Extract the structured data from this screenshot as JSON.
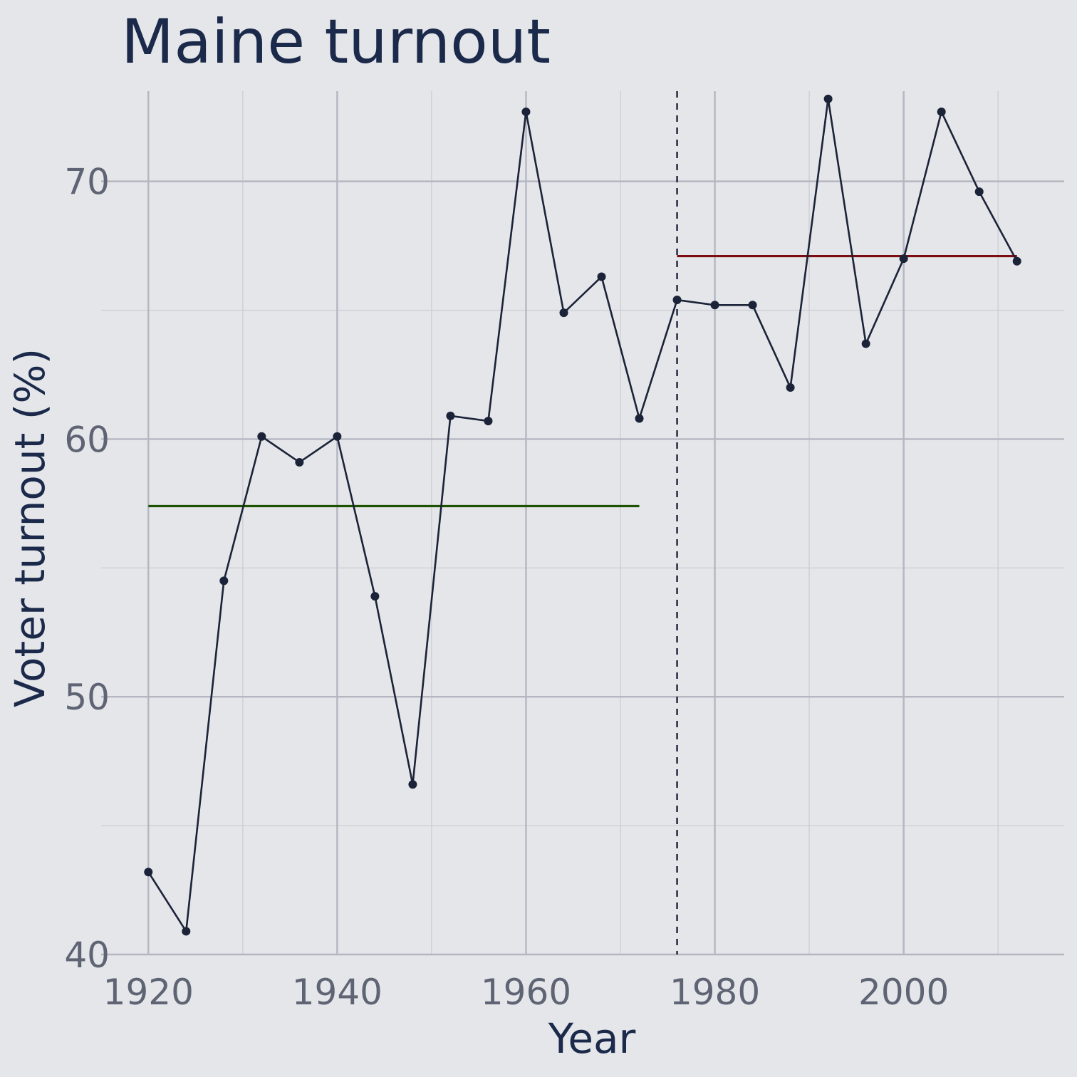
{
  "chart_data": {
    "type": "line",
    "title": "Maine turnout",
    "xlabel": "Year",
    "ylabel": "Voter turnout (%)",
    "xlim": [
      1915,
      2017
    ],
    "ylim": [
      40,
      73.5
    ],
    "x_ticks": [
      1920,
      1940,
      1960,
      1980,
      2000
    ],
    "x_minor_ticks": [
      1930,
      1950,
      1970,
      1990,
      2010
    ],
    "y_ticks": [
      40,
      50,
      60,
      70
    ],
    "y_minor_ticks": [
      45,
      55,
      65
    ],
    "x_tick_labels": [
      "1920",
      "1940",
      "1960",
      "1980",
      "2000"
    ],
    "y_tick_labels": [
      "40",
      "50",
      "60",
      "70"
    ],
    "grid": true,
    "series": [
      {
        "x": [
          1920,
          1924,
          1928,
          1932,
          1936,
          1940,
          1944,
          1948,
          1952,
          1956,
          1960,
          1964,
          1968,
          1972,
          1976,
          1980,
          1984,
          1988,
          1992,
          1996,
          2000,
          2004,
          2008,
          2012
        ],
        "values": [
          43.2,
          40.9,
          54.5,
          60.1,
          59.1,
          60.1,
          53.9,
          46.6,
          60.9,
          60.7,
          72.7,
          64.9,
          66.3,
          60.8,
          65.4,
          65.2,
          65.2,
          62.0,
          73.2,
          63.7,
          67.0,
          72.7,
          69.6,
          66.9
        ]
      }
    ],
    "reference_lines": [
      {
        "orientation": "horizontal",
        "y": 57.4,
        "x_from": 1920,
        "x_to": 1972,
        "color": "#1c5200"
      },
      {
        "orientation": "horizontal",
        "y": 67.1,
        "x_from": 1976,
        "x_to": 2012,
        "color": "#7a0c12"
      },
      {
        "orientation": "vertical",
        "x": 1976,
        "style": "dashed",
        "color": "#1b2338"
      }
    ],
    "colors": {
      "background": "#e5e6ea",
      "line": "#1b2338",
      "title": "#1b2a4a",
      "ticks": "#5e6473"
    }
  }
}
